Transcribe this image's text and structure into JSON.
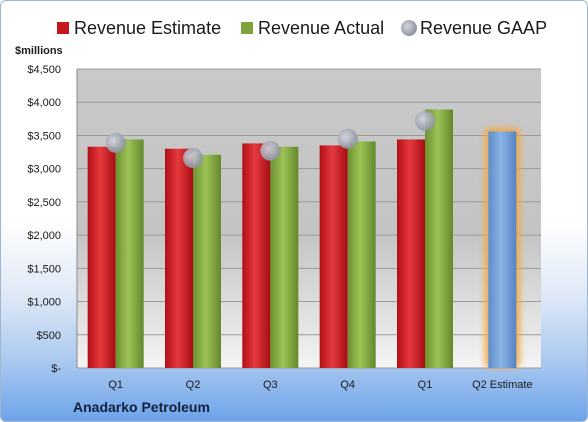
{
  "chart_data": {
    "type": "bar",
    "title": "",
    "unit_label": "$millions",
    "company": "Anadarko Petroleum",
    "categories": [
      "Q1",
      "Q2",
      "Q3",
      "Q4",
      "Q1",
      "Q2 Estimate"
    ],
    "ylim": [
      0,
      4500
    ],
    "yticks": [
      0,
      500,
      1000,
      1500,
      2000,
      2500,
      3000,
      3500,
      4000,
      4500
    ],
    "ytick_labels": [
      "$-",
      "$500",
      "$1,000",
      "$1,500",
      "$2,000",
      "$2,500",
      "$3,000",
      "$3,500",
      "$4,000",
      "$4,500"
    ],
    "grid": true,
    "legend_position": "top",
    "series": [
      {
        "name": "Revenue Estimate",
        "color": "#c8161d",
        "values": [
          3330,
          3300,
          3380,
          3350,
          3440,
          3560
        ]
      },
      {
        "name": "Revenue Actual",
        "color": "#7ea33c",
        "values": [
          3440,
          3210,
          3330,
          3410,
          3890,
          null
        ]
      },
      {
        "name": "Revenue GAAP",
        "color": "#a9aebd",
        "values": [
          3390,
          3160,
          3270,
          3450,
          3720,
          null
        ]
      }
    ],
    "highlight_color": "#f5a843",
    "estimate_bar_color": "#6f9ed6"
  }
}
